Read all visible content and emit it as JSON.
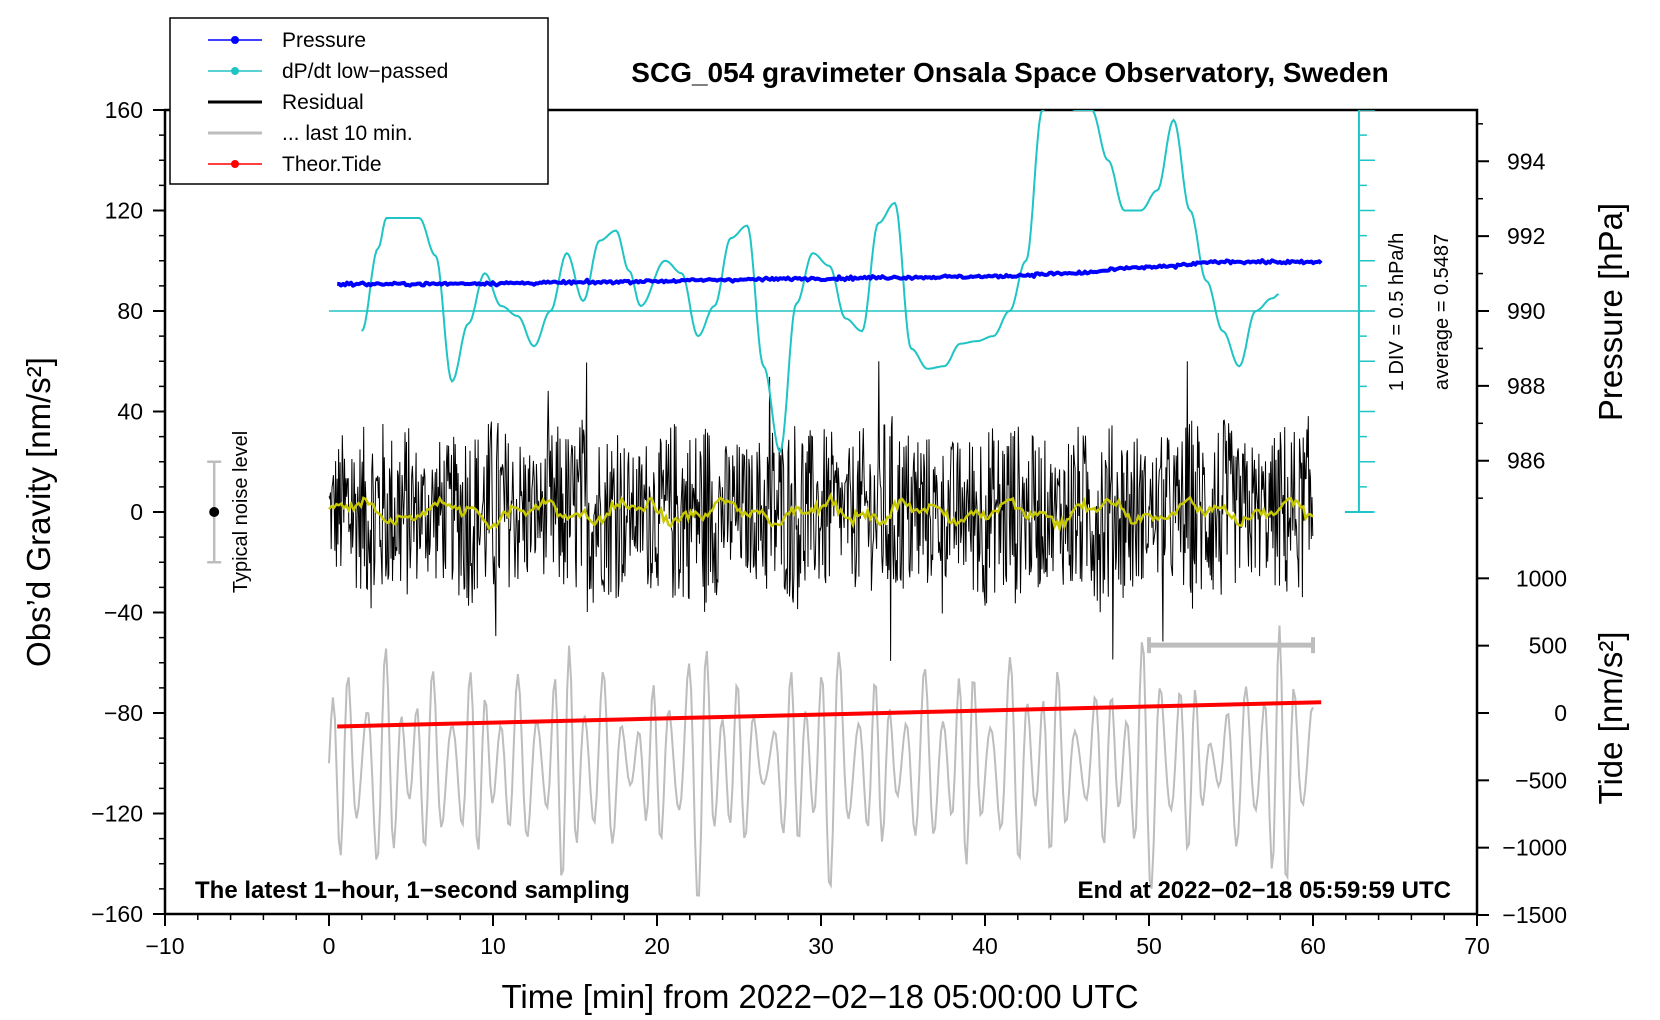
{
  "chart_data": {
    "type": "line",
    "title": "SCG_054 gravimeter Onsala Space Observatory, Sweden",
    "xlabel": "Time [min] from 2022−02−18 05:00:00 UTC",
    "ylabel_left": "Obs’d Gravity [nm/s²]",
    "ylabel_right_pressure": "Pressure [hPa]",
    "ylabel_right_tide": "Tide [nm/s²]",
    "xlim": [
      -10,
      70
    ],
    "ylim_left": [
      -160,
      160
    ],
    "x_ticks": [
      "−10",
      "0",
      "10",
      "20",
      "30",
      "40",
      "50",
      "60",
      "70"
    ],
    "y_ticks_left": [
      "160",
      "120",
      "80",
      "40",
      "0",
      "−40",
      "−80",
      "−120",
      "−160"
    ],
    "pressure_ticks": [
      "994",
      "992",
      "990",
      "988",
      "986"
    ],
    "tide_ticks": [
      "1000",
      "500",
      "0",
      "−500",
      "−1000",
      "−1500"
    ],
    "legend": [
      {
        "label": "Pressure",
        "color": "#0000ff"
      },
      {
        "label": "dP/dt low−passed",
        "color": "#20c4c4"
      },
      {
        "label": "Residual",
        "color": "#000000"
      },
      {
        "label": "... last 10 min.",
        "color": "#bdbdbd"
      },
      {
        "label": "Theor.Tide",
        "color": "#ff0000"
      }
    ],
    "annotations": {
      "noise_label": "Typical noise level",
      "dpdt_scale": "1 DIV = 0.5 hPa/h",
      "dpdt_average": "average = 0.5487",
      "bottom_left": "The latest 1−hour, 1−second sampling",
      "bottom_right": "End at 2022−02−18 05:59:59 UTC"
    },
    "series": [
      {
        "name": "Pressure",
        "units": "hPa",
        "color": "#0000ff",
        "x": [
          0.5,
          5,
          10,
          15,
          20,
          25,
          30,
          35,
          40,
          45,
          50,
          55,
          60
        ],
        "values": [
          990.72,
          990.72,
          990.74,
          990.76,
          990.8,
          990.84,
          990.87,
          990.9,
          990.92,
          991.0,
          991.17,
          991.32,
          991.3
        ]
      },
      {
        "name": "dP/dt low-passed",
        "units": "gravity-axis units (1 DIV = 0.5 hPa/h)",
        "color": "#20c4c4",
        "x": [
          2,
          3,
          3.5,
          5.5,
          6.5,
          7.5,
          8.5,
          9.5,
          10.5,
          11.5,
          12.5,
          13.5,
          14.5,
          15.5,
          16.5,
          17.5,
          18.3,
          19,
          20.5,
          21.5,
          22.5,
          23.5,
          24.5,
          25.5,
          26.5,
          27.5,
          28.5,
          29.5,
          30.5,
          31.5,
          32.5,
          33.5,
          34.5,
          35.5,
          36.5,
          37.5,
          38.5,
          39.5,
          40.5,
          41.5,
          42.5,
          43.5,
          44.5,
          45.5,
          46.5,
          47.5,
          48.5,
          49.5,
          50.5,
          51.5,
          52.5,
          53.5,
          54.5,
          55.5,
          56.5,
          57.5,
          58
        ],
        "values": [
          72,
          105,
          117,
          117,
          102,
          52,
          75,
          95,
          82,
          78,
          66,
          80,
          103,
          84,
          108,
          112,
          96,
          82,
          100,
          95,
          70,
          82,
          109,
          114,
          58,
          24,
          83,
          103,
          98,
          77,
          72,
          115,
          123,
          65,
          57,
          58,
          67,
          68,
          70,
          80,
          100,
          160,
          165,
          160,
          160,
          140,
          120,
          120,
          128,
          156,
          120,
          92,
          72,
          58,
          80,
          85,
          87
        ]
      },
      {
        "name": "Residual",
        "units": "nm/s²",
        "color": "#000000",
        "x": [
          0,
          60
        ],
        "values": [
          0,
          0
        ],
        "envelope_amplitude": [
          25,
          45
        ]
      },
      {
        "name": "... last 10 min.",
        "units": "nm/s² (offset)",
        "color": "#bdbdbd",
        "x": [
          0,
          60
        ],
        "values": [
          -100,
          -100
        ],
        "envelope_amplitude": [
          25,
          50
        ]
      },
      {
        "name": "Theor.Tide",
        "units": "nm/s² (tide axis)",
        "color": "#ff0000",
        "x": [
          0.5,
          60.5
        ],
        "values": [
          -100,
          80
        ]
      }
    ],
    "noise_level_bar": {
      "x": -7,
      "center": 0,
      "low": -20,
      "high": 20
    },
    "last_10_min_bar": {
      "x_start": 50,
      "x_end": 60,
      "y": -53
    },
    "dpdt_baseline": 80
  }
}
